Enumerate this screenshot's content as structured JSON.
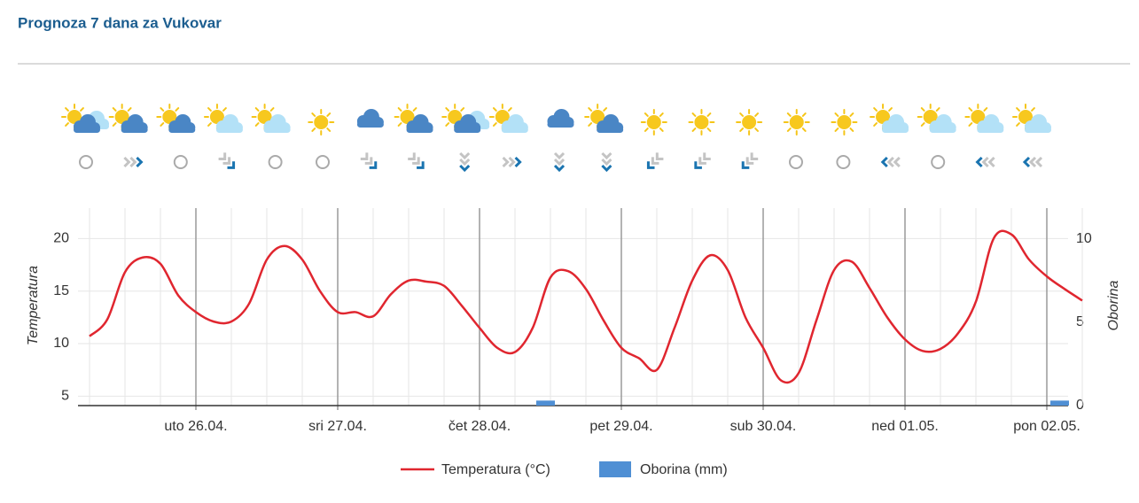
{
  "header": {
    "title": "Prognoza 7 dana za Vukovar"
  },
  "chart_data": {
    "type": "line",
    "categories": [
      null,
      null,
      null,
      null,
      null,
      null,
      "uto 26.04.",
      null,
      null,
      null,
      null,
      null,
      null,
      null,
      "sri 27.04.",
      null,
      null,
      null,
      null,
      null,
      null,
      null,
      "čet 28.04.",
      null,
      null,
      null,
      null,
      null,
      null,
      null,
      "pet 29.04.",
      null,
      null,
      null,
      null,
      null,
      null,
      null,
      "sub 30.04.",
      null,
      null,
      null,
      null,
      null,
      null,
      null,
      "ned 01.05.",
      null,
      null,
      null,
      null,
      null,
      null,
      null,
      "pon 02.05.",
      null,
      null
    ],
    "series": [
      {
        "name": "Temperatura (°C)",
        "color": "#e0262f",
        "values": [
          10.7,
          12.3,
          16.8,
          18.2,
          17.6,
          14.6,
          13.0,
          12.1,
          12.1,
          13.8,
          18.0,
          19.3,
          18.0,
          15.0,
          13.0,
          13.0,
          12.6,
          14.7,
          16.0,
          15.9,
          15.5,
          13.6,
          11.5,
          9.6,
          9.2,
          11.5,
          16.3,
          16.9,
          15.2,
          12.2,
          9.6,
          8.6,
          7.5,
          11.5,
          16.0,
          18.4,
          17.0,
          12.5,
          9.6,
          6.5,
          7.2,
          12.2,
          17.0,
          17.8,
          15.3,
          12.5,
          10.4,
          9.3,
          9.5,
          11.0,
          14.0,
          20.0,
          20.4,
          18.0,
          16.4,
          15.2,
          14.1
        ]
      },
      {
        "name": "Oborina (mm)",
        "color": "#4f8fd4",
        "type": "bar",
        "axis": "y2",
        "values": [
          0,
          0,
          0,
          0,
          0,
          0,
          0,
          0,
          0,
          0,
          0,
          0,
          0,
          0,
          0,
          0,
          0,
          0,
          0,
          0,
          0,
          0,
          0,
          0,
          0,
          0.3,
          0,
          0,
          0,
          0,
          0,
          0,
          0,
          0,
          0,
          0,
          0,
          0,
          0,
          0,
          0,
          0,
          0,
          0,
          0,
          0,
          0,
          0,
          0,
          0,
          0,
          0,
          0,
          0,
          0.3,
          0,
          0
        ]
      }
    ],
    "y_label": "Temperatura",
    "y2_label": "Oborina",
    "ylim": [
      4.1,
      22.9
    ],
    "yticks": [
      5,
      10,
      15,
      20
    ],
    "y2lim": [
      0,
      11.86
    ],
    "y2ticks": [
      0,
      5,
      10
    ],
    "grid": true,
    "legend": "bottom"
  }
}
